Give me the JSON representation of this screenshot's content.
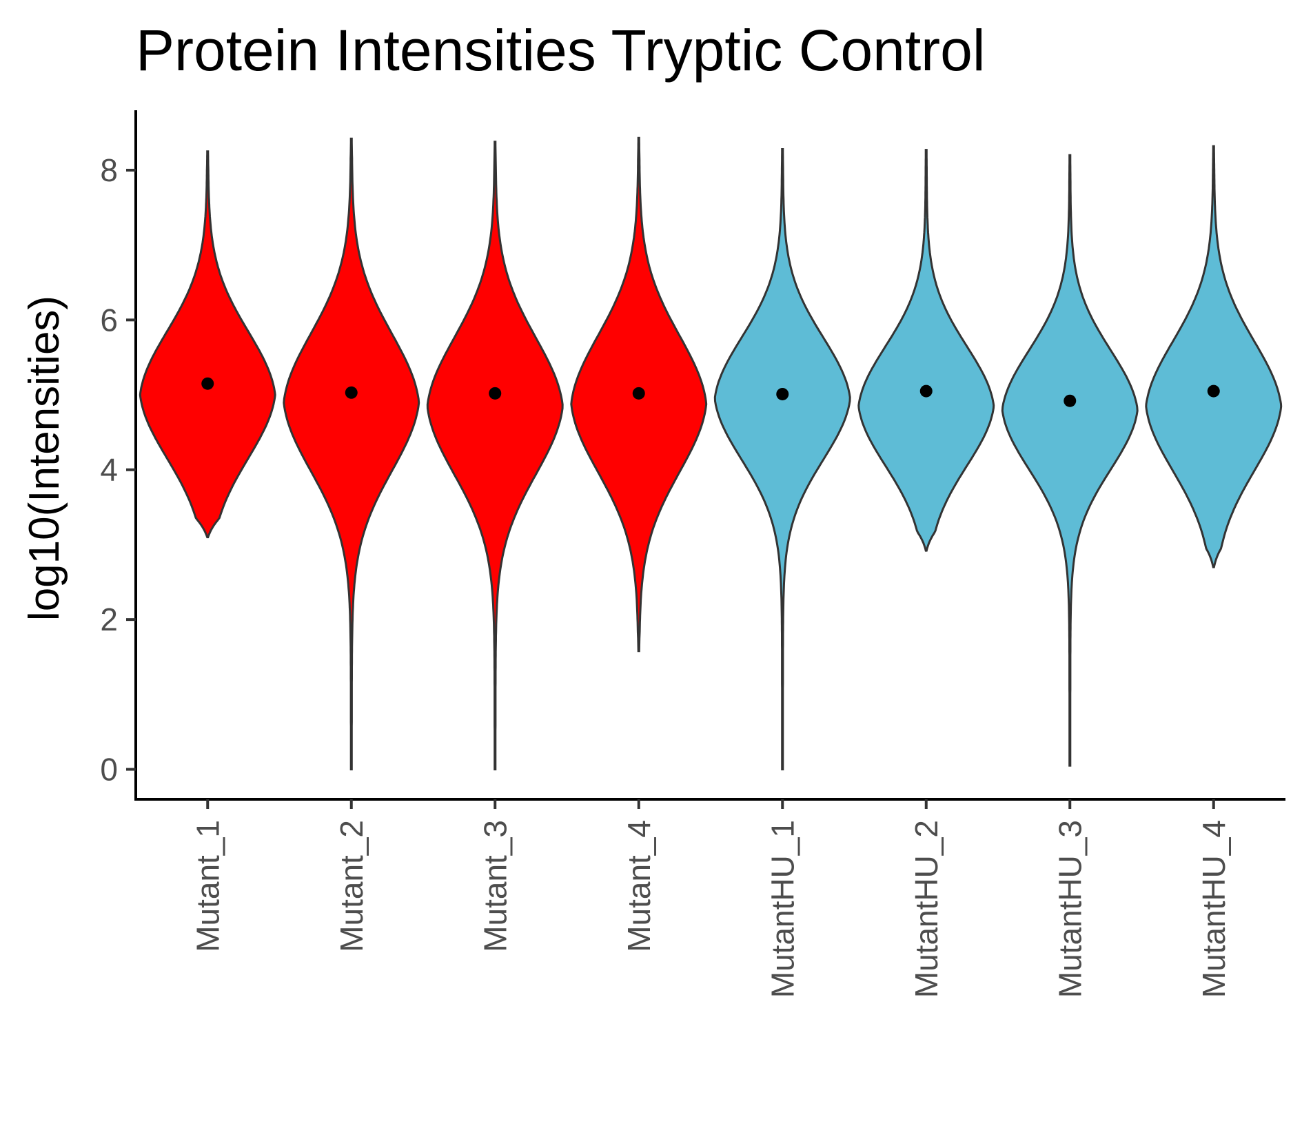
{
  "chart_data": {
    "type": "violin",
    "title": "Protein Intensities Tryptic Control",
    "xlabel": "",
    "ylabel": "log10(Intensities)",
    "ylim": [
      -0.4,
      8.8
    ],
    "yticks": [
      0,
      2,
      4,
      6,
      8
    ],
    "grid": false,
    "legend": "none",
    "categories": [
      "Mutant_1",
      "Mutant_2",
      "Mutant_3",
      "Mutant_4",
      "MutantHU_1",
      "MutantHU_2",
      "MutantHU_3",
      "MutantHU_4"
    ],
    "groups": [
      {
        "category": "Mutant_1",
        "color": "#FF0000",
        "min": 3.1,
        "max": 8.25,
        "median": 5.15,
        "mode": 5.0,
        "spread": 0.88
      },
      {
        "category": "Mutant_2",
        "color": "#FF0000",
        "min": 0.0,
        "max": 8.42,
        "median": 5.03,
        "mode": 4.9,
        "spread": 0.95
      },
      {
        "category": "Mutant_3",
        "color": "#FF0000",
        "min": 0.0,
        "max": 8.38,
        "median": 5.02,
        "mode": 4.85,
        "spread": 0.95
      },
      {
        "category": "Mutant_4",
        "color": "#FF0000",
        "min": 1.58,
        "max": 8.43,
        "median": 5.02,
        "mode": 4.88,
        "spread": 0.95
      },
      {
        "category": "MutantHU_1",
        "color": "#5EBCD6",
        "min": 0.0,
        "max": 8.28,
        "median": 5.01,
        "mode": 4.95,
        "spread": 0.85
      },
      {
        "category": "MutantHU_2",
        "color": "#5EBCD6",
        "min": 2.92,
        "max": 8.27,
        "median": 5.05,
        "mode": 4.85,
        "spread": 0.83
      },
      {
        "category": "MutantHU_3",
        "color": "#5EBCD6",
        "min": 0.05,
        "max": 8.2,
        "median": 4.92,
        "mode": 4.8,
        "spread": 0.83
      },
      {
        "category": "MutantHU_4",
        "color": "#5EBCD6",
        "min": 2.7,
        "max": 8.32,
        "median": 5.05,
        "mode": 4.85,
        "spread": 0.9
      }
    ]
  }
}
